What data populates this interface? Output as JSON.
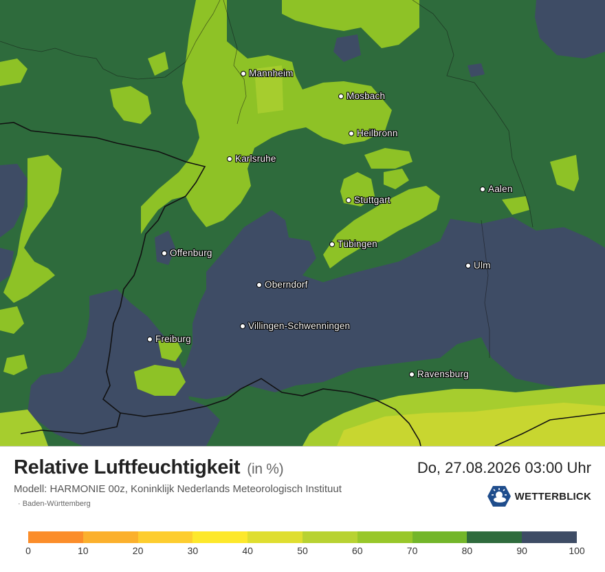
{
  "map": {
    "colors": {
      "very_humid": "#3e4c65",
      "humid": "#2e6b3c",
      "mid": "#62a82e",
      "light": "#8ec226",
      "pale": "#a6cd2e",
      "yellow": "#c8d630",
      "border": "#111111"
    },
    "cities": [
      {
        "name": "Mannheim",
        "icon": "city-dot-icon"
      },
      {
        "name": "Mosbach",
        "icon": "city-dot-icon"
      },
      {
        "name": "Heilbronn",
        "icon": "city-dot-icon"
      },
      {
        "name": "Karlsruhe",
        "icon": "city-dot-icon"
      },
      {
        "name": "Stuttgart",
        "icon": "city-dot-icon"
      },
      {
        "name": "Aalen",
        "icon": "city-dot-icon"
      },
      {
        "name": "Tübingen",
        "icon": "city-dot-icon"
      },
      {
        "name": "Offenburg",
        "icon": "city-dot-icon"
      },
      {
        "name": "Ulm",
        "icon": "city-dot-icon"
      },
      {
        "name": "Oberndorf",
        "icon": "city-dot-icon"
      },
      {
        "name": "Villingen-Schwenningen",
        "icon": "city-dot-icon"
      },
      {
        "name": "Freiburg",
        "icon": "city-dot-icon"
      },
      {
        "name": "Ravensburg",
        "icon": "city-dot-icon"
      }
    ]
  },
  "footer": {
    "title": "Relative Luftfeuchtigkeit",
    "unit": "(in %)",
    "datetime": "Do, 27.08.2026 03:00 Uhr",
    "model": "Modell: HARMONIE 00z, Koninklijk Nederlands Meteorologisch Instituut",
    "region": "· Baden-Württemberg",
    "logo": {
      "text": "WETTERBLICK",
      "icon": "sun-cloud-logo-icon"
    }
  },
  "legend": {
    "colors": [
      "#fb8d2a",
      "#fbb02d",
      "#fdcd2f",
      "#fde82c",
      "#dfde30",
      "#b8d232",
      "#98c72a",
      "#73b62a",
      "#2f6b3d",
      "#3e4c65"
    ],
    "ticks": [
      "0",
      "10",
      "20",
      "30",
      "40",
      "50",
      "60",
      "70",
      "80",
      "90",
      "100"
    ]
  }
}
